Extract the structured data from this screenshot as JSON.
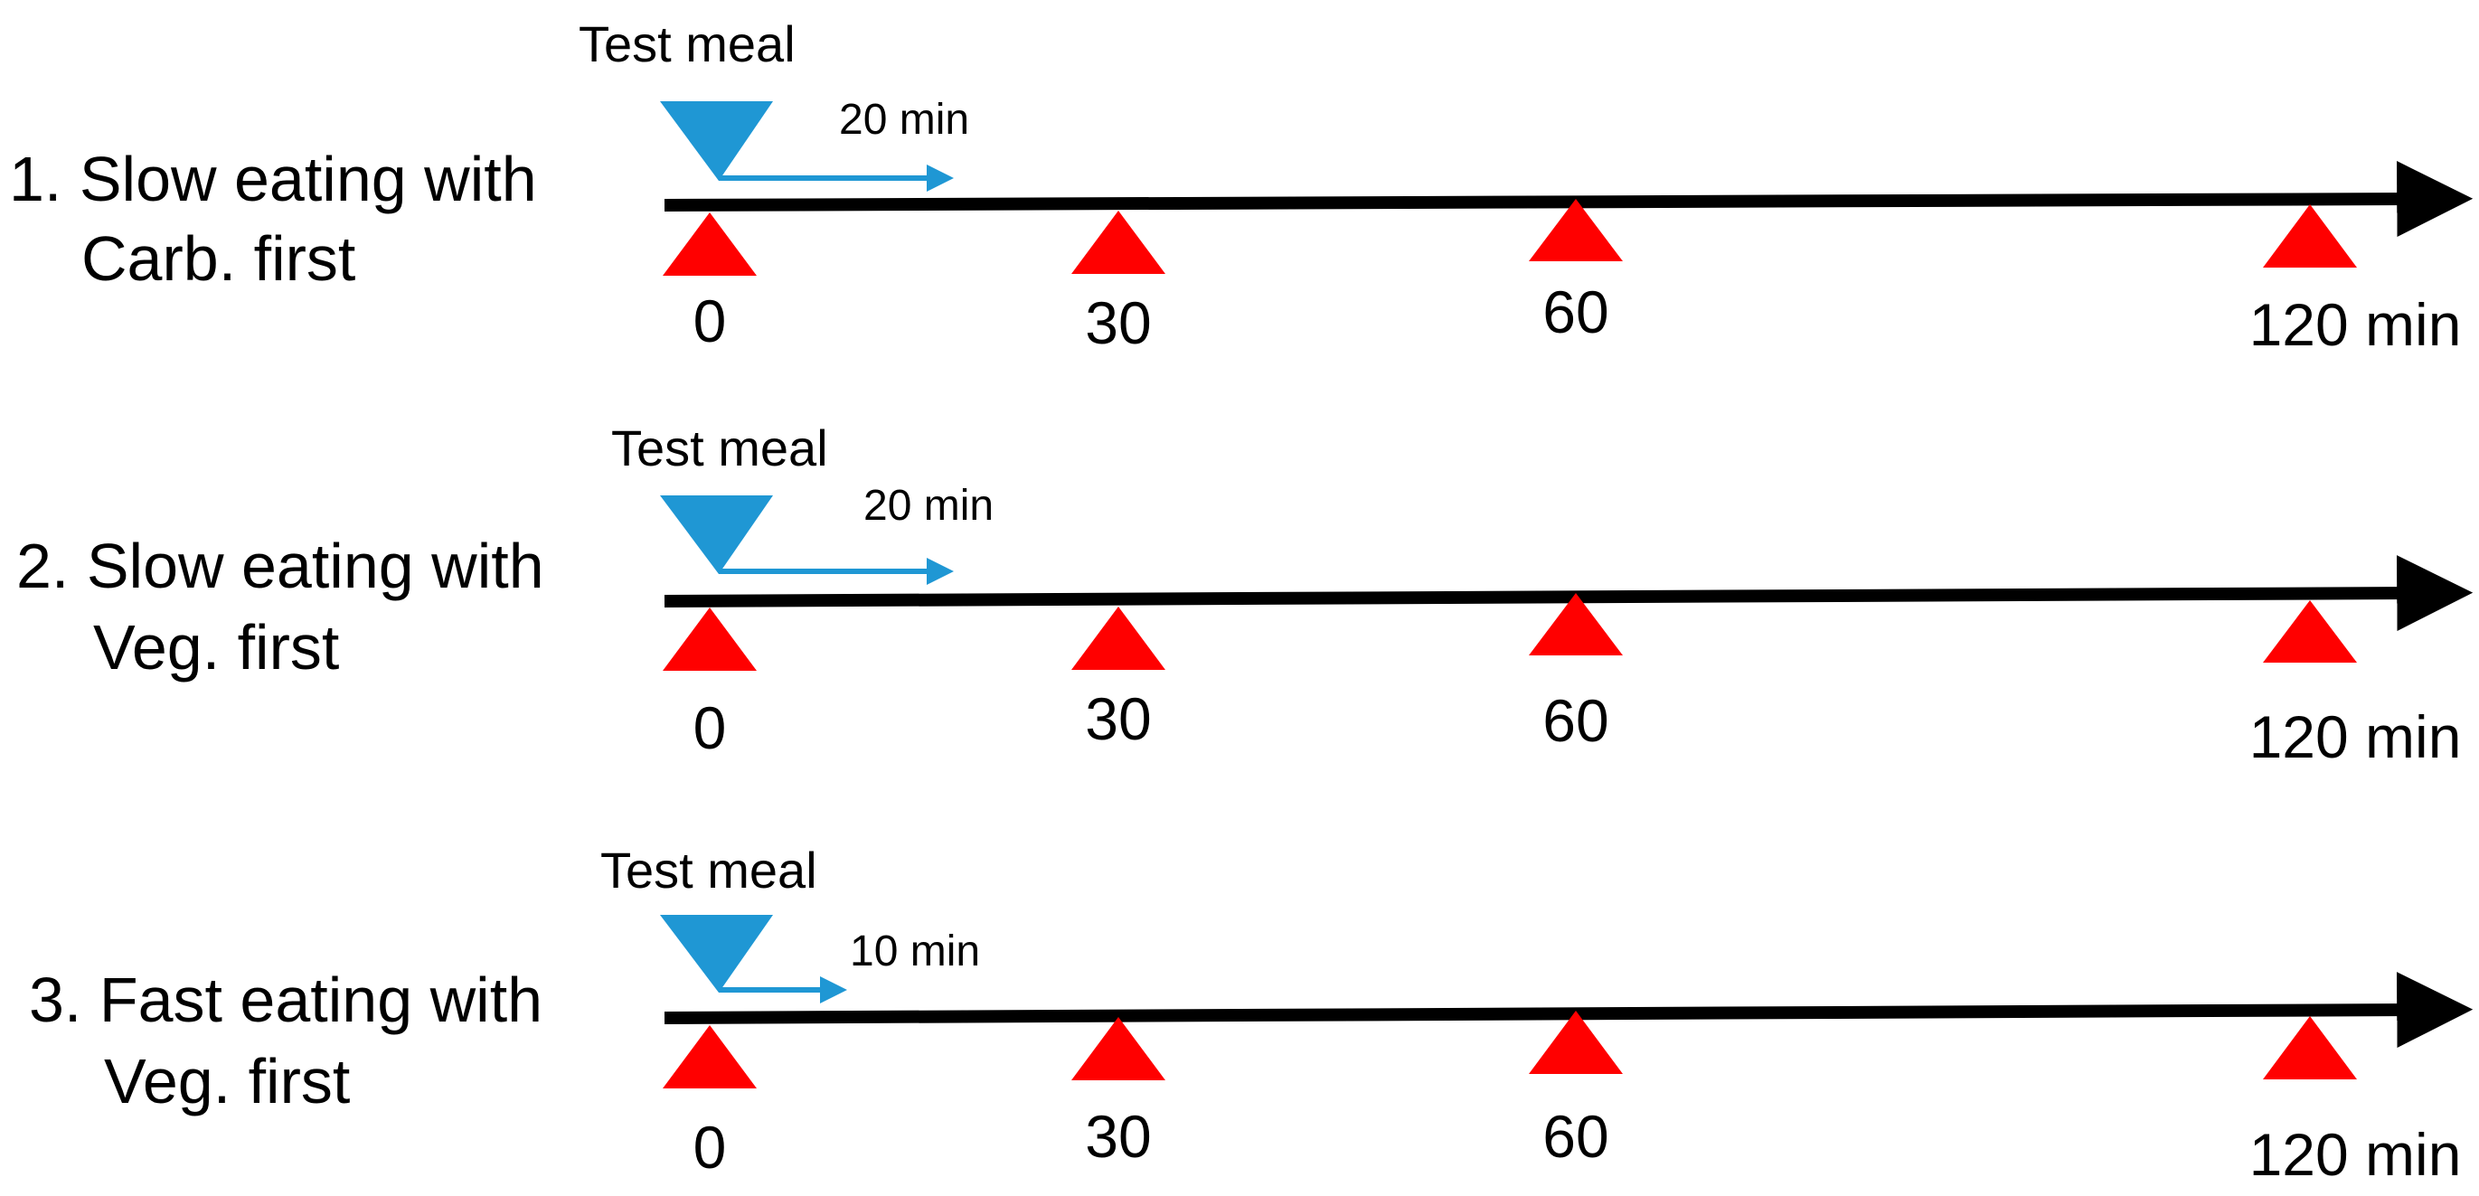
{
  "colors": {
    "axis": "#000000",
    "sampling_marker": "#ff0000",
    "meal_marker": "#1f97d4",
    "text": "#000000"
  },
  "timelines": [
    {
      "label_lines": [
        "1. Slow eating with",
        "Carb. first"
      ],
      "meal_label": "Test meal",
      "meal_duration_min": 20,
      "meal_duration_label": "20 min",
      "time_points_min": [
        0,
        30,
        60,
        120
      ],
      "tick_labels": [
        "0",
        "30",
        "60",
        "120 min"
      ]
    },
    {
      "label_lines": [
        "2. Slow eating with",
        "Veg. first"
      ],
      "meal_label": "Test meal",
      "meal_duration_min": 20,
      "meal_duration_label": "20 min",
      "time_points_min": [
        0,
        30,
        60,
        120
      ],
      "tick_labels": [
        "0",
        "30",
        "60",
        "120 min"
      ]
    },
    {
      "label_lines": [
        "3. Fast eating with",
        "Veg. first"
      ],
      "meal_label": "Test meal",
      "meal_duration_min": 10,
      "meal_duration_label": "10 min",
      "time_points_min": [
        0,
        30,
        60,
        120
      ],
      "tick_labels": [
        "0",
        "30",
        "60",
        "120 min"
      ]
    }
  ]
}
